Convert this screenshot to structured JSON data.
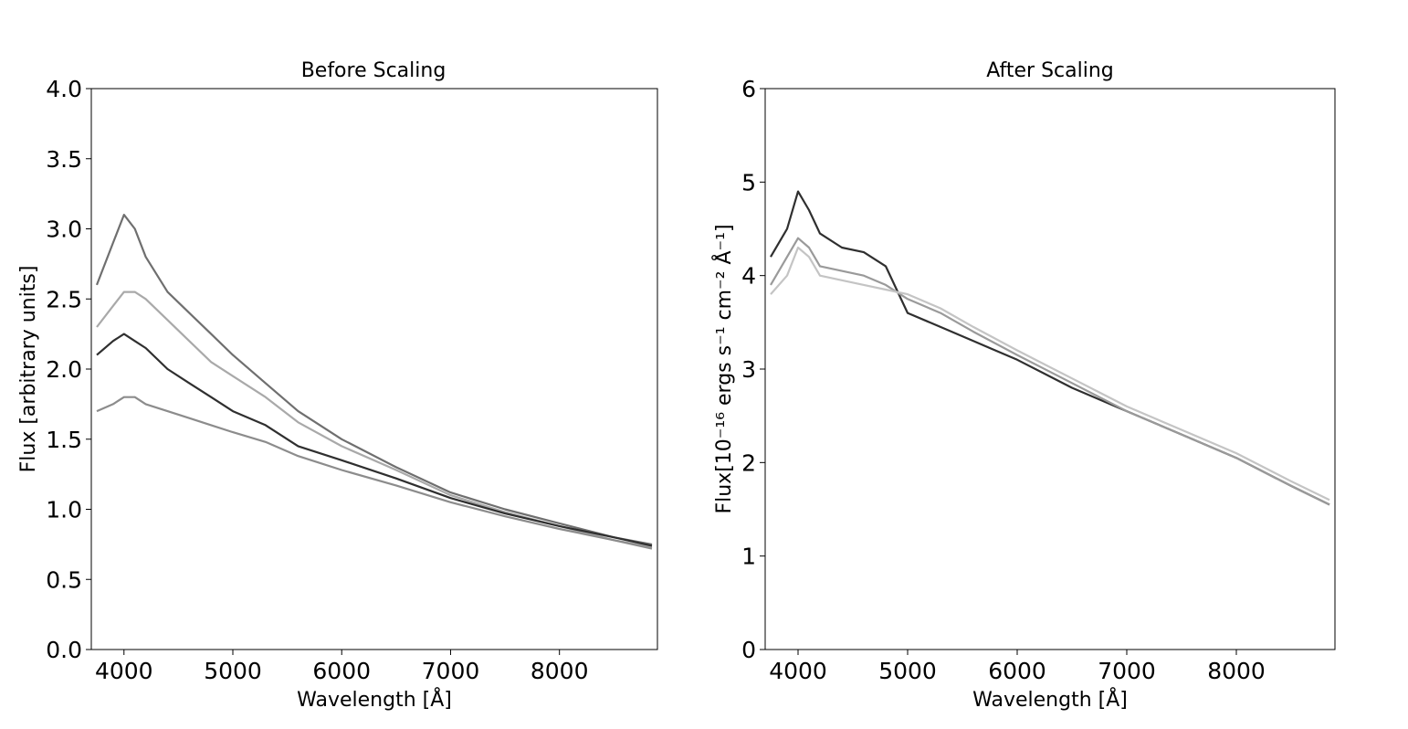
{
  "chart_data": [
    {
      "type": "line",
      "title": "Before Scaling",
      "xlabel": "Wavelength [Å]",
      "ylabel": "Flux [arbitrary units]",
      "xlim": [
        3700,
        8900
      ],
      "ylim": [
        0.0,
        4.0
      ],
      "xticks": [
        4000,
        5000,
        6000,
        7000,
        8000
      ],
      "xtick_labels": [
        "4000",
        "5000",
        "6000",
        "7000",
        "8000"
      ],
      "yticks": [
        0.0,
        0.5,
        1.0,
        1.5,
        2.0,
        2.5,
        3.0,
        3.5,
        4.0
      ],
      "ytick_labels": [
        "0.0",
        "0.5",
        "1.0",
        "1.5",
        "2.0",
        "2.5",
        "3.0",
        "3.5",
        "4.0"
      ],
      "grid": false,
      "series": [
        {
          "color": "#6f6f6f",
          "x": [
            3750,
            3900,
            4000,
            4100,
            4200,
            4400,
            4600,
            4800,
            5000,
            5300,
            5600,
            6000,
            6500,
            7000,
            7500,
            8000,
            8500,
            8850
          ],
          "y": [
            2.6,
            2.9,
            3.1,
            3.0,
            2.8,
            2.55,
            2.4,
            2.25,
            2.1,
            1.9,
            1.7,
            1.5,
            1.3,
            1.12,
            1.0,
            0.9,
            0.8,
            0.75
          ]
        },
        {
          "color": "#a9a9a9",
          "x": [
            3750,
            3900,
            4000,
            4100,
            4200,
            4400,
            4600,
            4800,
            5000,
            5300,
            5600,
            6000,
            6500,
            7000,
            7500,
            8000,
            8500,
            8850
          ],
          "y": [
            2.3,
            2.45,
            2.55,
            2.55,
            2.5,
            2.35,
            2.2,
            2.05,
            1.95,
            1.8,
            1.62,
            1.45,
            1.28,
            1.1,
            0.98,
            0.88,
            0.78,
            0.73
          ]
        },
        {
          "color": "#2f2f2f",
          "x": [
            3750,
            3900,
            4000,
            4100,
            4200,
            4400,
            4600,
            4800,
            5000,
            5300,
            5600,
            6000,
            6500,
            7000,
            7500,
            8000,
            8500,
            8850
          ],
          "y": [
            2.1,
            2.2,
            2.25,
            2.2,
            2.15,
            2.0,
            1.9,
            1.8,
            1.7,
            1.6,
            1.45,
            1.35,
            1.22,
            1.08,
            0.97,
            0.88,
            0.8,
            0.74
          ]
        },
        {
          "color": "#8c8c8c",
          "x": [
            3750,
            3900,
            4000,
            4100,
            4200,
            4400,
            4600,
            4800,
            5000,
            5300,
            5600,
            6000,
            6500,
            7000,
            7500,
            8000,
            8500,
            8850
          ],
          "y": [
            1.7,
            1.75,
            1.8,
            1.8,
            1.75,
            1.7,
            1.65,
            1.6,
            1.55,
            1.48,
            1.38,
            1.28,
            1.17,
            1.05,
            0.95,
            0.86,
            0.78,
            0.72
          ]
        }
      ]
    },
    {
      "type": "line",
      "title": "After Scaling",
      "xlabel": "Wavelength [Å]",
      "ylabel": "Flux[10⁻¹⁶ ergs s⁻¹ cm⁻² Å⁻¹]",
      "xlim": [
        3700,
        8900
      ],
      "ylim": [
        0,
        6
      ],
      "xticks": [
        4000,
        5000,
        6000,
        7000,
        8000
      ],
      "xtick_labels": [
        "4000",
        "5000",
        "6000",
        "7000",
        "8000"
      ],
      "yticks": [
        0,
        1,
        2,
        3,
        4,
        5,
        6
      ],
      "ytick_labels": [
        "0",
        "1",
        "2",
        "3",
        "4",
        "5",
        "6"
      ],
      "grid": false,
      "series": [
        {
          "color": "#2f2f2f",
          "x": [
            3750,
            3900,
            4000,
            4100,
            4200,
            4400,
            4600,
            4800,
            5000,
            5300,
            5600,
            6000,
            6500,
            7000,
            7500,
            8000,
            8500,
            8850
          ],
          "y": [
            4.2,
            4.5,
            4.9,
            4.7,
            4.45,
            4.3,
            4.25,
            4.1,
            3.6,
            3.45,
            3.3,
            3.1,
            2.8,
            2.55,
            2.3,
            2.05,
            1.75,
            1.55
          ]
        },
        {
          "color": "#9a9a9a",
          "x": [
            3750,
            3900,
            4000,
            4100,
            4200,
            4400,
            4600,
            4800,
            5000,
            5300,
            5600,
            6000,
            6500,
            7000,
            7500,
            8000,
            8500,
            8850
          ],
          "y": [
            3.9,
            4.2,
            4.4,
            4.3,
            4.1,
            4.05,
            4.0,
            3.9,
            3.75,
            3.6,
            3.4,
            3.15,
            2.85,
            2.55,
            2.3,
            2.05,
            1.75,
            1.55
          ]
        },
        {
          "color": "#c4c4c4",
          "x": [
            3750,
            3900,
            4000,
            4100,
            4200,
            4400,
            4600,
            4800,
            5000,
            5300,
            5600,
            6000,
            6500,
            7000,
            7500,
            8000,
            8500,
            8850
          ],
          "y": [
            3.8,
            4.0,
            4.3,
            4.2,
            4.0,
            3.95,
            3.9,
            3.85,
            3.8,
            3.65,
            3.45,
            3.2,
            2.9,
            2.6,
            2.35,
            2.1,
            1.8,
            1.6
          ]
        }
      ]
    }
  ]
}
